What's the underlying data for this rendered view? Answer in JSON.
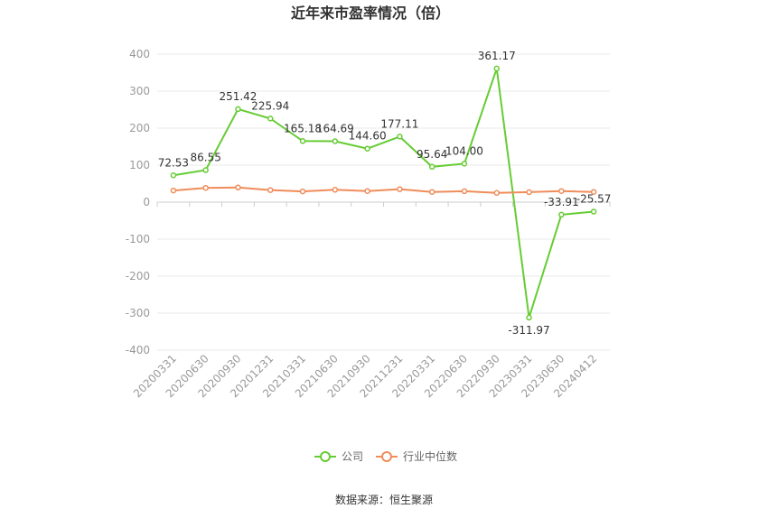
{
  "chart_data": {
    "type": "line",
    "title": "近年来市盈率情况（倍）",
    "source": "数据来源：恒生聚源",
    "x": [
      "20200331",
      "20200630",
      "20200930",
      "20201231",
      "20210331",
      "20210630",
      "20210930",
      "20211231",
      "20220331",
      "20220630",
      "20220930",
      "20230331",
      "20230630",
      "20240412"
    ],
    "ylim": [
      -400,
      400
    ],
    "yticks": [
      400,
      300,
      200,
      100,
      0,
      -100,
      -200,
      -300,
      -400
    ],
    "grid": true,
    "legend_position": "bottom",
    "series": [
      {
        "name": "公司",
        "color": "#66cc33",
        "values": [
          72.53,
          86.55,
          251.42,
          225.94,
          165.18,
          164.69,
          144.6,
          177.11,
          95.64,
          104.0,
          361.17,
          -311.97,
          -33.91,
          -25.57
        ],
        "labels": [
          "72.53",
          "86.55",
          "251.42",
          "225.94",
          "165.18",
          "164.69",
          "144.60",
          "177.11",
          "95.64",
          "104.00",
          "361.17",
          "-311.97",
          "-33.91",
          "-25.57"
        ]
      },
      {
        "name": "行业中位数",
        "color": "#f08c5a",
        "values": [
          31.5,
          38.5,
          39.5,
          32.5,
          29.0,
          33.5,
          30.0,
          35.0,
          27.5,
          29.5,
          25.0,
          27.0,
          30.0,
          27.5
        ]
      }
    ]
  }
}
